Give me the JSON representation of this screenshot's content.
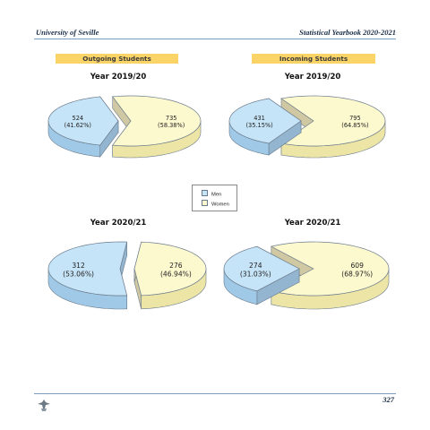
{
  "header": {
    "left": "University of Seville",
    "right": "Statistical Yearbook 2020-2021"
  },
  "footer": {
    "page_number": "327"
  },
  "sections": {
    "outgoing": "Outgoing Students",
    "incoming": "Incoming Students"
  },
  "legend": {
    "position": "center",
    "items": [
      {
        "label": "Men",
        "color": "#c6e4f7"
      },
      {
        "label": "Women",
        "color": "#fdf9cf"
      }
    ]
  },
  "chart_data": [
    {
      "type": "pie",
      "group": "Outgoing Students",
      "title": "Year 2019/20",
      "labels": [
        "Men",
        "Women"
      ],
      "values": [
        524,
        735
      ],
      "percent_labels": [
        "(41.62%)",
        "(58.38%)"
      ],
      "exploded": "Women"
    },
    {
      "type": "pie",
      "group": "Incoming Students",
      "title": "Year 2019/20",
      "labels": [
        "Men",
        "Women"
      ],
      "values": [
        431,
        795
      ],
      "percent_labels": [
        "(35.15%)",
        "(64.85%)"
      ],
      "exploded": "Men"
    },
    {
      "type": "pie",
      "group": "Outgoing Students",
      "title": "Year 2020/21",
      "labels": [
        "Men",
        "Women"
      ],
      "values": [
        312,
        276
      ],
      "percent_labels": [
        "(53.06%)",
        "(46.94%)"
      ],
      "exploded": "Women"
    },
    {
      "type": "pie",
      "group": "Incoming Students",
      "title": "Year 2020/21",
      "labels": [
        "Men",
        "Women"
      ],
      "values": [
        274,
        609
      ],
      "percent_labels": [
        "(31.03%)",
        "(68.97%)"
      ],
      "exploded": "Men"
    }
  ],
  "colors": {
    "men_top": "#c6e4f7",
    "men_side": "#9fc9e6",
    "women_top": "#fdf9cf",
    "women_side": "#ece5a6",
    "inner_face": "#cfc8a2",
    "inner_face_men": "#93b5cf",
    "outline": "#6b7b8c"
  }
}
